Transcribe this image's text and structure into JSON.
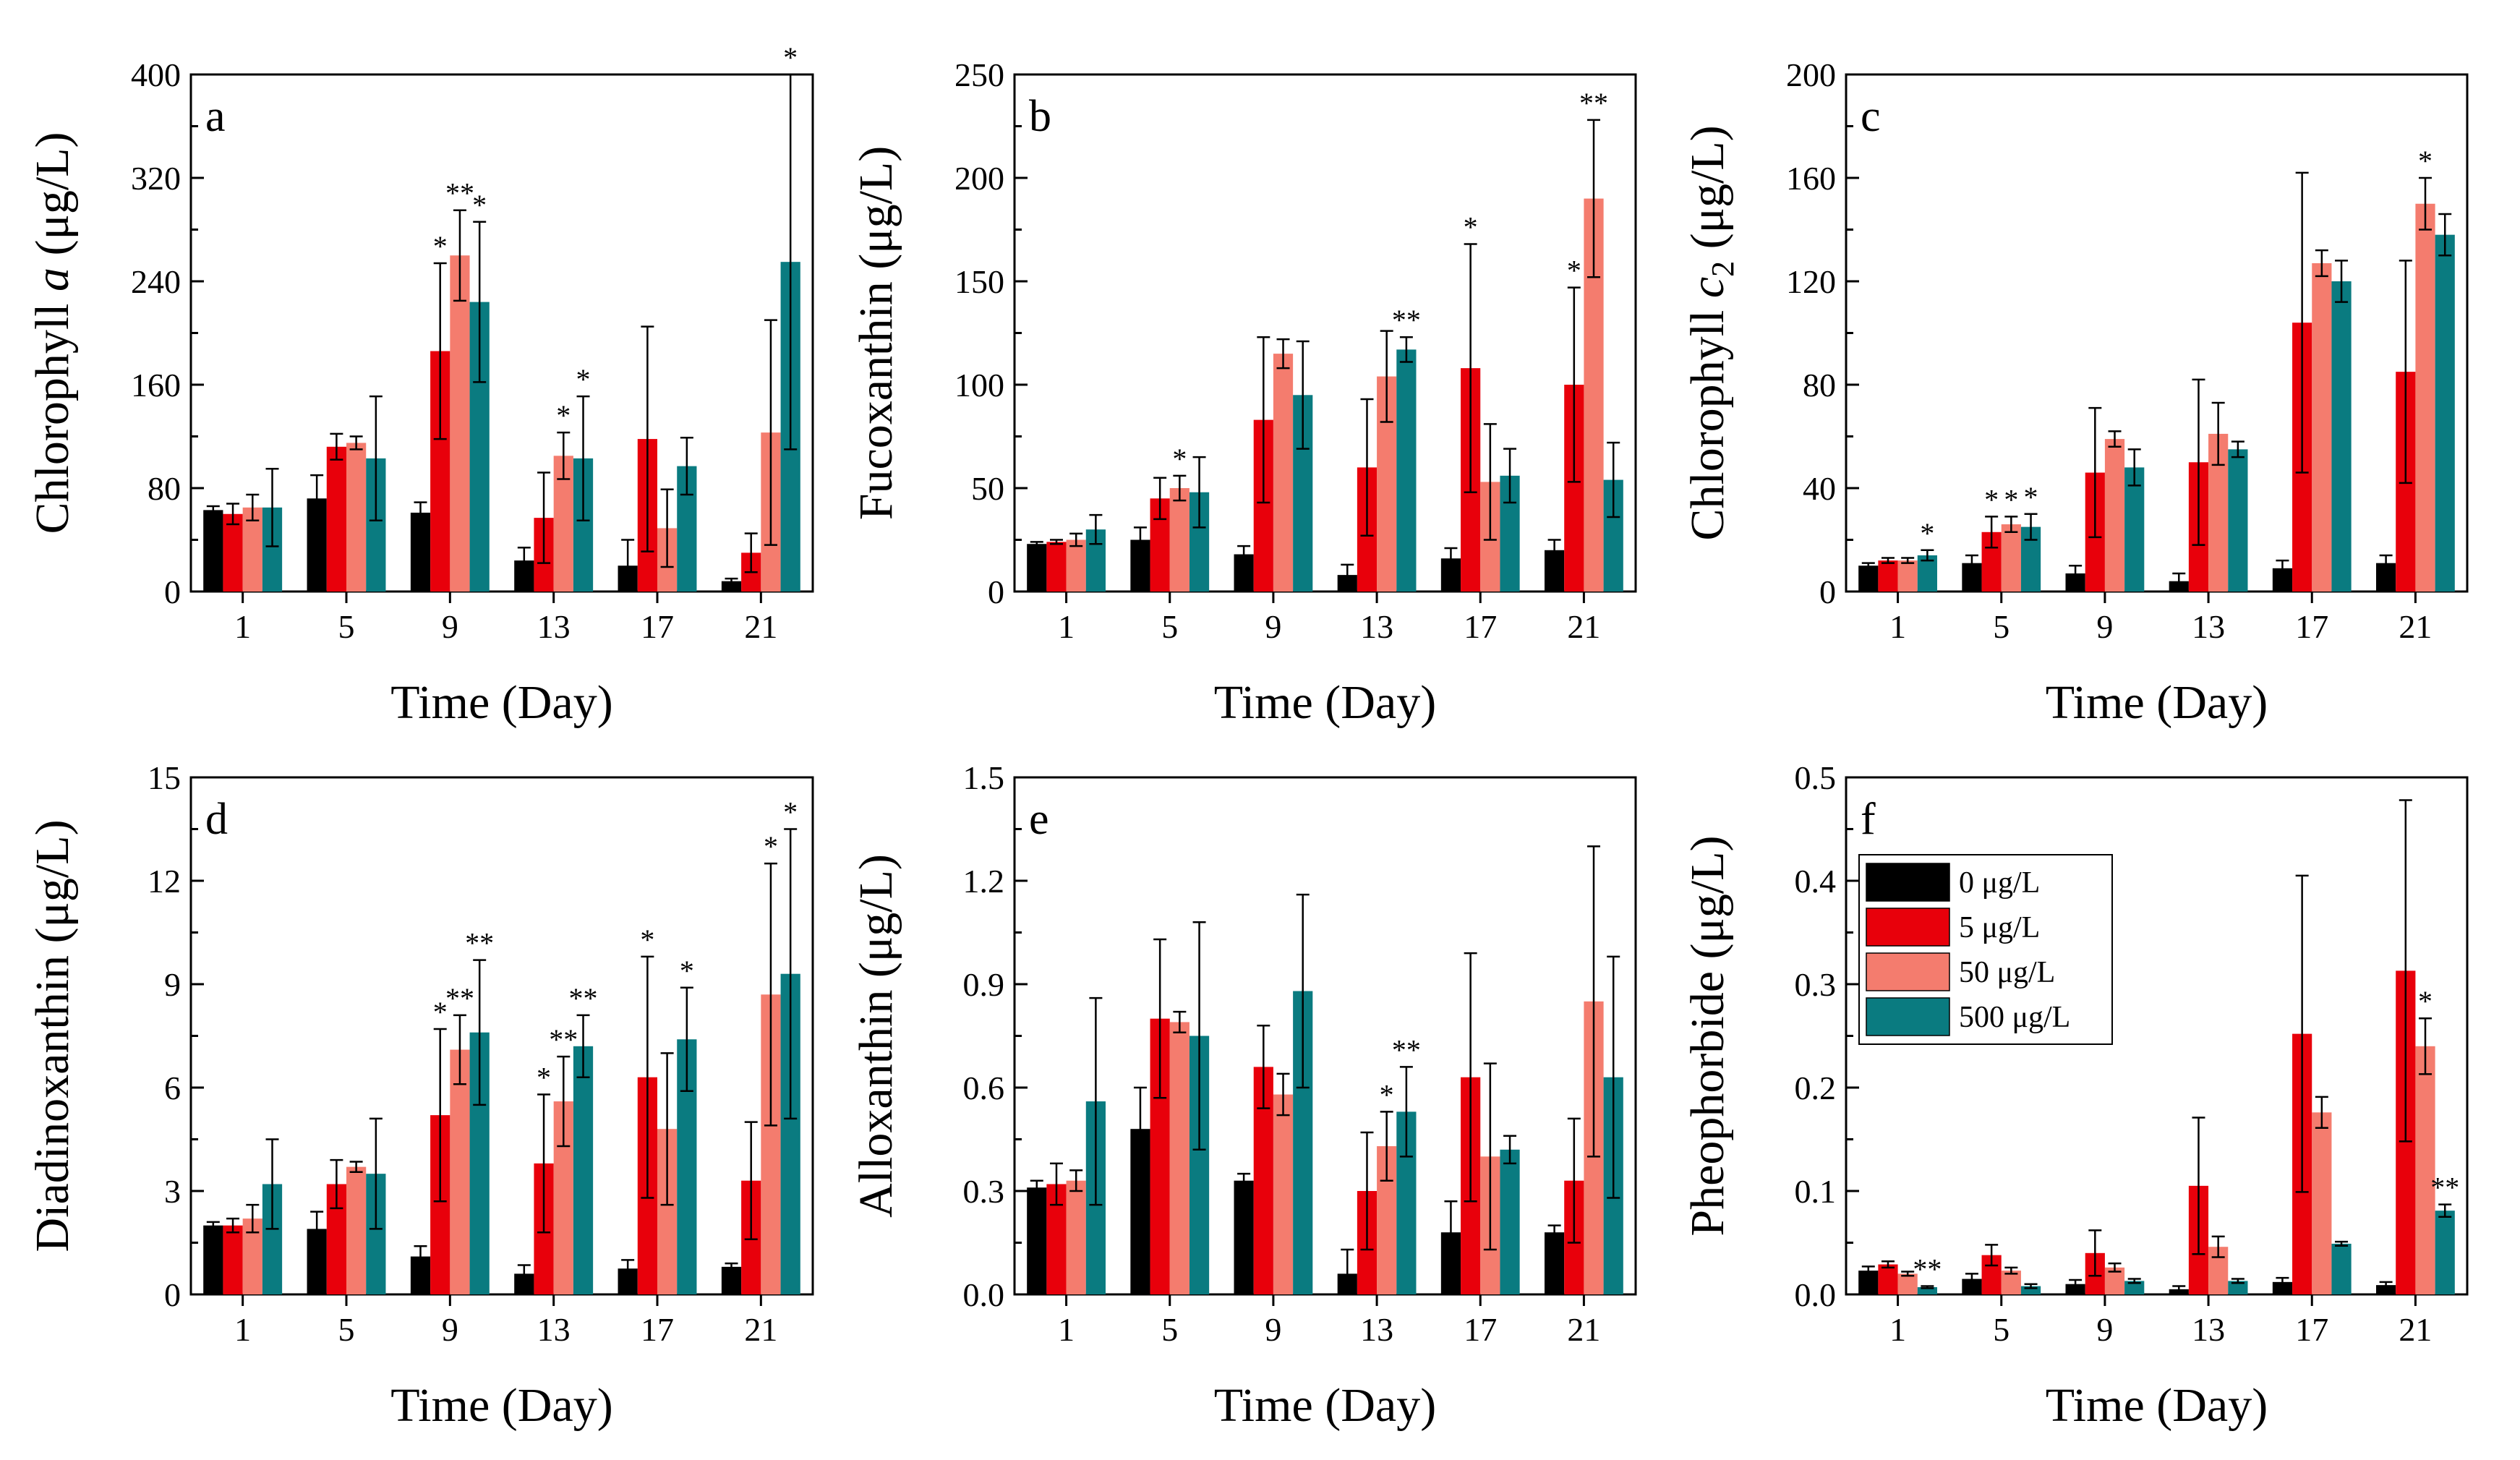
{
  "figure": {
    "series": [
      {
        "name": "0 μg/L",
        "color": "#000000"
      },
      {
        "name": "5 μg/L",
        "color": "#e8000b"
      },
      {
        "name": "50 μg/L",
        "color": "#f47c6e"
      },
      {
        "name": "500 μg/L",
        "color": "#0a7b80"
      }
    ]
  },
  "chart_data": [
    {
      "panel": "a",
      "type": "bar",
      "xlabel": "Time (Day)",
      "ylabel_parts": [
        "Chlorophyll ",
        "a",
        " (μg/L)"
      ],
      "categories": [
        "1",
        "5",
        "9",
        "13",
        "17",
        "21"
      ],
      "ylim": [
        0,
        400
      ],
      "yticks": [
        "0",
        "80",
        "160",
        "240",
        "320",
        "400"
      ],
      "values": [
        [
          63,
          60,
          65,
          65
        ],
        [
          72,
          112,
          115,
          103
        ],
        [
          61,
          186,
          260,
          224
        ],
        [
          24,
          57,
          105,
          103
        ],
        [
          20,
          118,
          49,
          97
        ],
        [
          8,
          30,
          123,
          255
        ]
      ],
      "errors": [
        [
          3,
          8,
          10,
          30
        ],
        [
          18,
          10,
          5,
          48
        ],
        [
          8,
          68,
          35,
          62
        ],
        [
          10,
          35,
          18,
          48
        ],
        [
          20,
          87,
          30,
          22
        ],
        [
          2,
          15,
          87,
          145
        ]
      ],
      "stars": [
        [
          "",
          "",
          "",
          ""
        ],
        [
          "",
          "",
          "",
          ""
        ],
        [
          "",
          "*",
          "**",
          "*"
        ],
        [
          "",
          "",
          "*",
          "*"
        ],
        [
          "",
          "",
          "",
          ""
        ],
        [
          "",
          "",
          "",
          "*"
        ]
      ]
    },
    {
      "panel": "b",
      "type": "bar",
      "xlabel": "Time (Day)",
      "ylabel_parts": [
        "Fucoxanthin (μg/L)"
      ],
      "categories": [
        "1",
        "5",
        "9",
        "13",
        "17",
        "21"
      ],
      "ylim": [
        0,
        250
      ],
      "yticks": [
        "0",
        "50",
        "100",
        "150",
        "200",
        "250"
      ],
      "values": [
        [
          23,
          24,
          25,
          30
        ],
        [
          25,
          45,
          50,
          48
        ],
        [
          18,
          83,
          115,
          95
        ],
        [
          8,
          60,
          104,
          117
        ],
        [
          16,
          108,
          53,
          56
        ],
        [
          20,
          100,
          190,
          54
        ]
      ],
      "errors": [
        [
          1,
          1,
          3,
          7
        ],
        [
          6,
          10,
          6,
          17
        ],
        [
          4,
          40,
          7,
          26
        ],
        [
          5,
          33,
          22,
          6
        ],
        [
          5,
          60,
          28,
          13
        ],
        [
          5,
          47,
          38,
          18
        ]
      ],
      "stars": [
        [
          "",
          "",
          "",
          ""
        ],
        [
          "",
          "",
          "*",
          ""
        ],
        [
          "",
          "",
          "",
          ""
        ],
        [
          "",
          "",
          "",
          "**"
        ],
        [
          "",
          "*",
          "",
          ""
        ],
        [
          "",
          "*",
          "**",
          ""
        ]
      ]
    },
    {
      "panel": "c",
      "type": "bar",
      "xlabel": "Time (Day)",
      "ylabel_parts": [
        "Chlorophyll ",
        "c",
        "2",
        " (μg/L)"
      ],
      "categories": [
        "1",
        "5",
        "9",
        "13",
        "17",
        "21"
      ],
      "ylim": [
        0,
        200
      ],
      "yticks": [
        "0",
        "40",
        "80",
        "120",
        "160",
        "200"
      ],
      "values": [
        [
          10,
          12,
          12,
          14
        ],
        [
          11,
          23,
          26,
          25
        ],
        [
          7,
          46,
          59,
          48
        ],
        [
          4,
          50,
          61,
          55
        ],
        [
          9,
          104,
          127,
          120
        ],
        [
          11,
          85,
          150,
          138
        ]
      ],
      "errors": [
        [
          1,
          1,
          1,
          2
        ],
        [
          3,
          6,
          3,
          5
        ],
        [
          3,
          25,
          3,
          7
        ],
        [
          3,
          32,
          12,
          3
        ],
        [
          3,
          58,
          5,
          8
        ],
        [
          3,
          43,
          10,
          8
        ]
      ],
      "stars": [
        [
          "",
          "",
          "",
          "*"
        ],
        [
          "",
          "*",
          "*",
          "*"
        ],
        [
          "",
          "",
          "",
          ""
        ],
        [
          "",
          "",
          "",
          ""
        ],
        [
          "",
          "",
          "",
          ""
        ],
        [
          "",
          "",
          "*",
          ""
        ]
      ]
    },
    {
      "panel": "d",
      "type": "bar",
      "xlabel": "Time (Day)",
      "ylabel_parts": [
        "Diadinoxanthin (μg/L)"
      ],
      "categories": [
        "1",
        "5",
        "9",
        "13",
        "17",
        "21"
      ],
      "ylim": [
        0,
        15
      ],
      "yticks": [
        "0",
        "3",
        "6",
        "9",
        "12",
        "15"
      ],
      "values": [
        [
          2.0,
          2.0,
          2.2,
          3.2
        ],
        [
          1.9,
          3.2,
          3.7,
          3.5
        ],
        [
          1.1,
          5.2,
          7.1,
          7.6
        ],
        [
          0.6,
          3.8,
          5.6,
          7.2
        ],
        [
          0.75,
          6.3,
          4.8,
          7.4
        ],
        [
          0.8,
          3.3,
          8.7,
          9.3
        ]
      ],
      "errors": [
        [
          0.1,
          0.2,
          0.4,
          1.3
        ],
        [
          0.5,
          0.7,
          0.15,
          1.6
        ],
        [
          0.3,
          2.5,
          1.0,
          2.1
        ],
        [
          0.25,
          2.0,
          1.3,
          0.9
        ],
        [
          0.25,
          3.5,
          2.2,
          1.5
        ],
        [
          0.1,
          1.7,
          3.8,
          4.2
        ]
      ],
      "stars": [
        [
          "",
          "",
          "",
          ""
        ],
        [
          "",
          "",
          "",
          ""
        ],
        [
          "",
          "*",
          "**",
          "**"
        ],
        [
          "",
          "*",
          "**",
          "**"
        ],
        [
          "",
          "*",
          "",
          "*"
        ],
        [
          "",
          "",
          "*",
          "*"
        ]
      ]
    },
    {
      "panel": "e",
      "type": "bar",
      "xlabel": "Time (Day)",
      "ylabel_parts": [
        "Alloxanthin (μg/L)"
      ],
      "categories": [
        "1",
        "5",
        "9",
        "13",
        "17",
        "21"
      ],
      "ylim": [
        0,
        1.5
      ],
      "yticks": [
        "0.0",
        "0.3",
        "0.6",
        "0.9",
        "1.2",
        "1.5"
      ],
      "values": [
        [
          0.31,
          0.32,
          0.33,
          0.56
        ],
        [
          0.48,
          0.8,
          0.79,
          0.75
        ],
        [
          0.33,
          0.66,
          0.58,
          0.88
        ],
        [
          0.06,
          0.3,
          0.43,
          0.53
        ],
        [
          0.18,
          0.63,
          0.4,
          0.42
        ],
        [
          0.18,
          0.33,
          0.85,
          0.63
        ]
      ],
      "errors": [
        [
          0.02,
          0.06,
          0.03,
          0.3
        ],
        [
          0.12,
          0.23,
          0.03,
          0.33
        ],
        [
          0.02,
          0.12,
          0.06,
          0.28
        ],
        [
          0.07,
          0.17,
          0.1,
          0.13
        ],
        [
          0.09,
          0.36,
          0.27,
          0.04
        ],
        [
          0.02,
          0.18,
          0.45,
          0.35
        ]
      ],
      "stars": [
        [
          "",
          "",
          "",
          ""
        ],
        [
          "",
          "",
          "",
          ""
        ],
        [
          "",
          "",
          "",
          ""
        ],
        [
          "",
          "",
          "*",
          "**"
        ],
        [
          "",
          "",
          "",
          ""
        ],
        [
          "",
          "",
          "",
          ""
        ]
      ]
    },
    {
      "panel": "f",
      "type": "bar",
      "xlabel": "Time (Day)",
      "ylabel_parts": [
        "Pheophorbide (μg/L)"
      ],
      "categories": [
        "1",
        "5",
        "9",
        "13",
        "17",
        "21"
      ],
      "ylim": [
        0,
        0.5
      ],
      "yticks": [
        "0.0",
        "0.1",
        "0.2",
        "0.3",
        "0.4",
        "0.5"
      ],
      "values": [
        [
          0.023,
          0.029,
          0.02,
          0.007
        ],
        [
          0.015,
          0.038,
          0.023,
          0.008
        ],
        [
          0.01,
          0.04,
          0.026,
          0.013
        ],
        [
          0.005,
          0.105,
          0.046,
          0.013
        ],
        [
          0.012,
          0.252,
          0.176,
          0.049
        ],
        [
          0.009,
          0.313,
          0.24,
          0.081
        ]
      ],
      "errors": [
        [
          0.004,
          0.003,
          0.002,
          0.001
        ],
        [
          0.005,
          0.01,
          0.003,
          0.002
        ],
        [
          0.004,
          0.022,
          0.004,
          0.002
        ],
        [
          0.003,
          0.066,
          0.01,
          0.002
        ],
        [
          0.004,
          0.153,
          0.015,
          0.002
        ],
        [
          0.003,
          0.165,
          0.027,
          0.006
        ]
      ],
      "stars": [
        [
          "",
          "",
          "",
          "**"
        ],
        [
          "",
          "",
          "",
          ""
        ],
        [
          "",
          "",
          "",
          ""
        ],
        [
          "",
          "",
          "",
          ""
        ],
        [
          "",
          "",
          "",
          ""
        ],
        [
          "",
          "",
          "*",
          "**"
        ]
      ],
      "legend": "top-left"
    }
  ]
}
